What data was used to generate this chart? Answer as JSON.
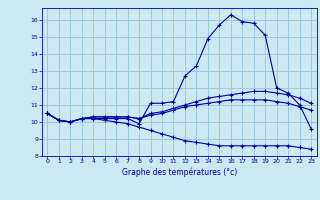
{
  "xlabel": "Graphe des températures (°c)",
  "bg_color": "#cce8f0",
  "line_color": "#0000aa",
  "grid_color": "#99ccdd",
  "xlim": [
    -0.5,
    23.5
  ],
  "ylim": [
    8.0,
    16.7
  ],
  "yticks": [
    8,
    9,
    10,
    11,
    12,
    13,
    14,
    15,
    16
  ],
  "xticks": [
    0,
    1,
    2,
    3,
    4,
    5,
    6,
    7,
    8,
    9,
    10,
    11,
    12,
    13,
    14,
    15,
    16,
    17,
    18,
    19,
    20,
    21,
    22,
    23
  ],
  "curve1_x": [
    0,
    1,
    2,
    3,
    4,
    5,
    6,
    7,
    8,
    9,
    10,
    11,
    12,
    13,
    14,
    15,
    16,
    17,
    18,
    19,
    20,
    21,
    22,
    23
  ],
  "curve1_y": [
    10.5,
    10.1,
    10.0,
    10.2,
    10.2,
    10.2,
    10.2,
    10.2,
    9.9,
    11.1,
    11.1,
    11.2,
    12.7,
    13.3,
    14.9,
    15.7,
    16.3,
    15.9,
    15.8,
    15.1,
    12.0,
    11.7,
    11.0,
    9.6
  ],
  "curve2_x": [
    0,
    1,
    2,
    3,
    4,
    5,
    6,
    7,
    8,
    9,
    10,
    11,
    12,
    13,
    14,
    15,
    16,
    17,
    18,
    19,
    20,
    21,
    22,
    23
  ],
  "curve2_y": [
    10.5,
    10.1,
    10.0,
    10.2,
    10.3,
    10.3,
    10.3,
    10.3,
    10.2,
    10.5,
    10.6,
    10.8,
    11.0,
    11.2,
    11.4,
    11.5,
    11.6,
    11.7,
    11.8,
    11.8,
    11.7,
    11.6,
    11.4,
    11.1
  ],
  "curve3_x": [
    0,
    1,
    2,
    3,
    4,
    5,
    6,
    7,
    8,
    9,
    10,
    11,
    12,
    13,
    14,
    15,
    16,
    17,
    18,
    19,
    20,
    21,
    22,
    23
  ],
  "curve3_y": [
    10.5,
    10.1,
    10.0,
    10.2,
    10.3,
    10.3,
    10.3,
    10.3,
    10.2,
    10.4,
    10.5,
    10.7,
    10.9,
    11.0,
    11.1,
    11.2,
    11.3,
    11.3,
    11.3,
    11.3,
    11.2,
    11.1,
    10.9,
    10.7
  ],
  "curve4_x": [
    0,
    1,
    2,
    3,
    4,
    5,
    6,
    7,
    8,
    9,
    10,
    11,
    12,
    13,
    14,
    15,
    16,
    17,
    18,
    19,
    20,
    21,
    22,
    23
  ],
  "curve4_y": [
    10.5,
    10.1,
    10.0,
    10.2,
    10.2,
    10.1,
    10.0,
    9.9,
    9.7,
    9.5,
    9.3,
    9.1,
    8.9,
    8.8,
    8.7,
    8.6,
    8.6,
    8.6,
    8.6,
    8.6,
    8.6,
    8.6,
    8.5,
    8.4
  ]
}
